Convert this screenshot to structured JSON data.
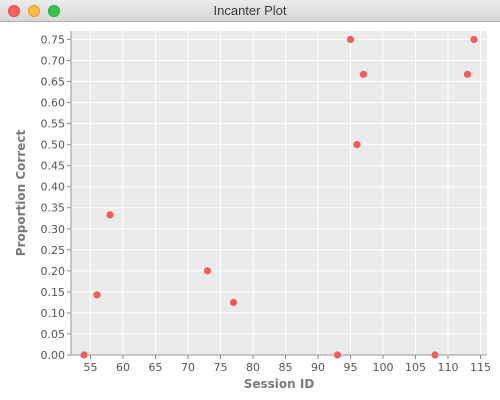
{
  "window": {
    "title": "Incanter Plot"
  },
  "chart_data": {
    "type": "scatter",
    "xlabel": "Session ID",
    "ylabel": "Proportion Correct",
    "xlim": [
      52,
      116
    ],
    "ylim": [
      0,
      0.77
    ],
    "xticks": [
      55,
      60,
      65,
      70,
      75,
      80,
      85,
      90,
      95,
      100,
      105,
      110,
      115
    ],
    "yticks": [
      "0.00",
      "0.05",
      "0.10",
      "0.15",
      "0.20",
      "0.25",
      "0.30",
      "0.35",
      "0.40",
      "0.45",
      "0.50",
      "0.55",
      "0.60",
      "0.65",
      "0.70",
      "0.75"
    ],
    "grid": true,
    "colors": {
      "point": "#f25c5c",
      "plot_bg": "#ebebeb",
      "grid": "#ffffff"
    },
    "points": [
      {
        "x": 54,
        "y": 0.0
      },
      {
        "x": 56,
        "y": 0.143
      },
      {
        "x": 58,
        "y": 0.333
      },
      {
        "x": 73,
        "y": 0.2
      },
      {
        "x": 77,
        "y": 0.125
      },
      {
        "x": 93,
        "y": 0.0
      },
      {
        "x": 95,
        "y": 0.75
      },
      {
        "x": 96,
        "y": 0.5
      },
      {
        "x": 97,
        "y": 0.667
      },
      {
        "x": 108,
        "y": 0.0
      },
      {
        "x": 113,
        "y": 0.667
      },
      {
        "x": 114,
        "y": 0.75
      }
    ]
  }
}
